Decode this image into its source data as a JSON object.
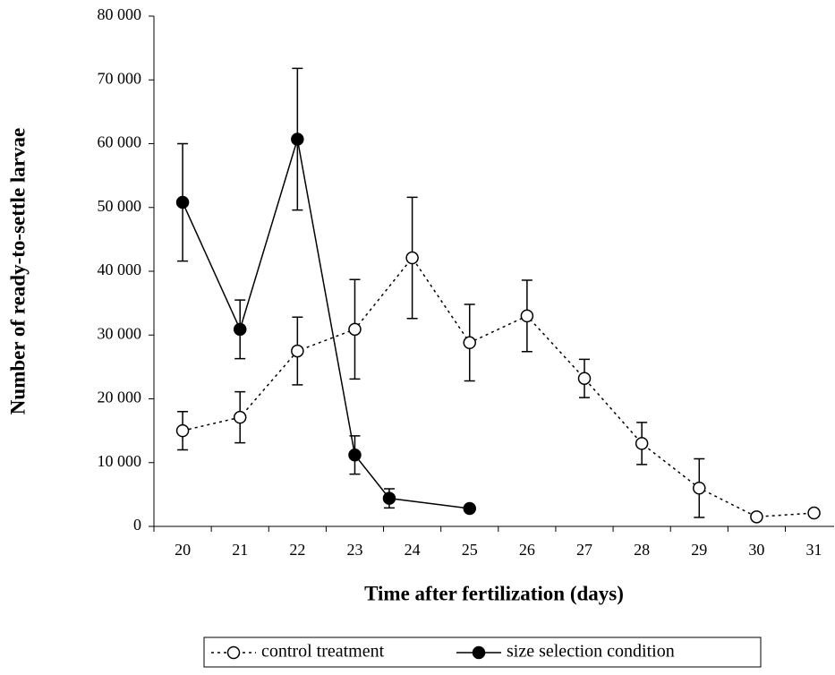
{
  "chart_data": {
    "type": "line",
    "xlabel": "Time after fertilization (days)",
    "ylabel": "Number of  ready-to-settle larvae",
    "xlim": [
      19.5,
      31.35
    ],
    "xticks": [
      20,
      21,
      22,
      23,
      24,
      25,
      26,
      27,
      28,
      29,
      30,
      31
    ],
    "ylim": [
      0,
      80000
    ],
    "yticks": [
      0,
      {
        "value": 10000,
        "label": "10 000"
      },
      {
        "value": 20000,
        "label": "20 000"
      },
      {
        "value": 30000,
        "label": "30 000"
      },
      {
        "value": 40000,
        "label": "40 000"
      },
      {
        "value": 50000,
        "label": "50 000"
      },
      {
        "value": 60000,
        "label": "60 000"
      },
      {
        "value": 70000,
        "label": "70 000"
      },
      {
        "value": 80000,
        "label": "80 000"
      }
    ],
    "legend": "bottom",
    "series": [
      {
        "name": "control treatment",
        "color": "#000000",
        "style": "dotted",
        "marker": "open",
        "x": [
          20,
          21,
          22,
          23,
          24,
          25,
          26,
          27,
          28,
          29,
          30,
          31
        ],
        "values": [
          15000,
          17100,
          27500,
          30900,
          42100,
          28800,
          33000,
          23200,
          13000,
          6000,
          1500,
          2100
        ],
        "errors": [
          3000,
          4000,
          5300,
          7800,
          9500,
          6000,
          5600,
          3000,
          3300,
          4600,
          null,
          null
        ]
      },
      {
        "name": "size selection condition",
        "color": "#000000",
        "style": "solid",
        "marker": "filled",
        "x": [
          20,
          21,
          22,
          23,
          23.6,
          25
        ],
        "values": [
          50800,
          30900,
          60700,
          11200,
          4400,
          2800
        ],
        "errors": [
          9200,
          4600,
          11100,
          3000,
          1500,
          null
        ]
      }
    ]
  }
}
